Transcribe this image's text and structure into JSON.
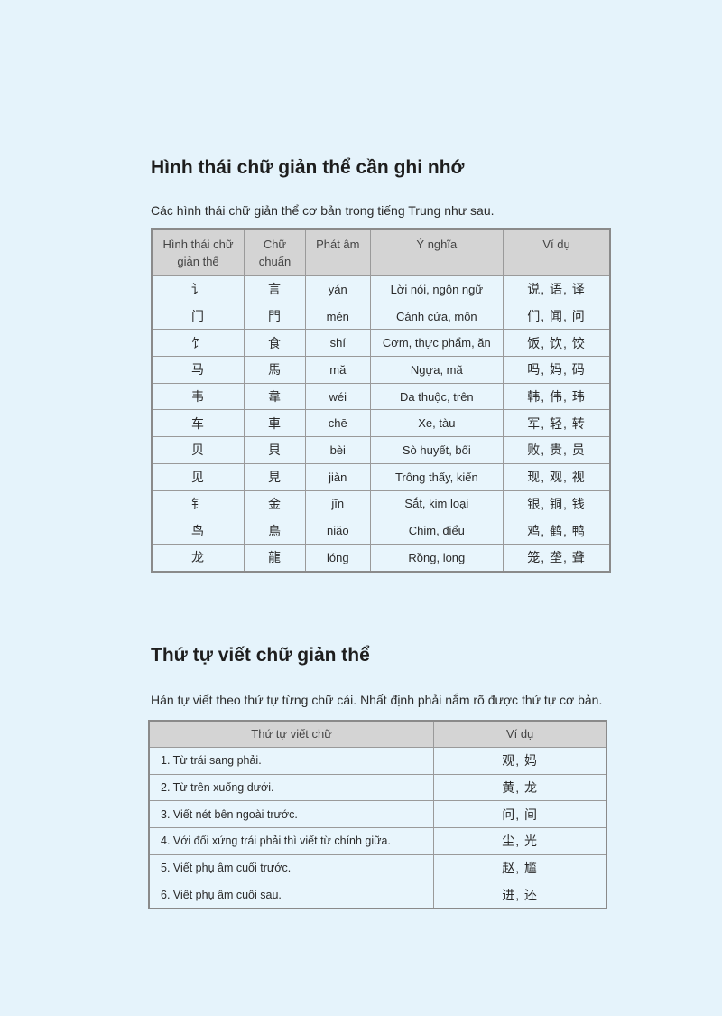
{
  "section1": {
    "title": "Hình thái chữ giản thể cần ghi nhớ",
    "intro": "Các hình thái chữ giản thể cơ bản trong tiếng Trung như sau.",
    "headers": [
      "Hình thái chữ giản thể",
      "Chữ chuẩn",
      "Phát âm",
      "Ý nghĩa",
      "Ví dụ"
    ],
    "rows": [
      [
        "讠",
        "言",
        "yán",
        "Lời nói, ngôn ngữ",
        "说, 语, 译"
      ],
      [
        "门",
        "門",
        "mén",
        "Cánh cửa, môn",
        "们, 闻, 问"
      ],
      [
        "饣",
        "食",
        "shí",
        "Cơm, thực phẩm, ăn",
        "饭, 饮, 饺"
      ],
      [
        "马",
        "馬",
        "mă",
        "Ngựa, mã",
        "吗, 妈, 码"
      ],
      [
        "韦",
        "韋",
        "wéi",
        "Da thuộc, trên",
        "韩, 伟, 玮"
      ],
      [
        "车",
        "車",
        "chē",
        "Xe, tàu",
        "军, 轻, 转"
      ],
      [
        "贝",
        "貝",
        "bèi",
        "Sò huyết, bối",
        "败, 贵, 员"
      ],
      [
        "见",
        "見",
        "jiàn",
        "Trông thấy, kiến",
        "现, 观, 视"
      ],
      [
        "钅",
        "金",
        "jīn",
        "Sắt, kim loại",
        "银, 铜, 钱"
      ],
      [
        "鸟",
        "鳥",
        "niăo",
        "Chim, điểu",
        "鸡, 鹤, 鸭"
      ],
      [
        "龙",
        "龍",
        "lóng",
        "Rồng, long",
        "笼, 垄, 聋"
      ]
    ]
  },
  "section2": {
    "title": "Thứ tự viết chữ giản thể",
    "intro": "Hán tự viết theo thứ tự từng chữ cái. Nhất định phải nắm rõ được thứ tự cơ bản.",
    "headers": [
      "Thứ tự viết chữ",
      "Ví dụ"
    ],
    "rows": [
      [
        "1. Từ trái sang phải.",
        "观, 妈"
      ],
      [
        "2. Từ trên xuống dưới.",
        "黄, 龙"
      ],
      [
        "3. Viết nét bên ngoài trước.",
        "问, 间"
      ],
      [
        "4. Với đối xứng trái phải thì viết từ chính giữa.",
        "尘, 光"
      ],
      [
        "5. Viết phụ âm cuối trước.",
        "赵, 尴"
      ],
      [
        "6. Viết phụ âm cuối sau.",
        "进, 还"
      ]
    ]
  }
}
